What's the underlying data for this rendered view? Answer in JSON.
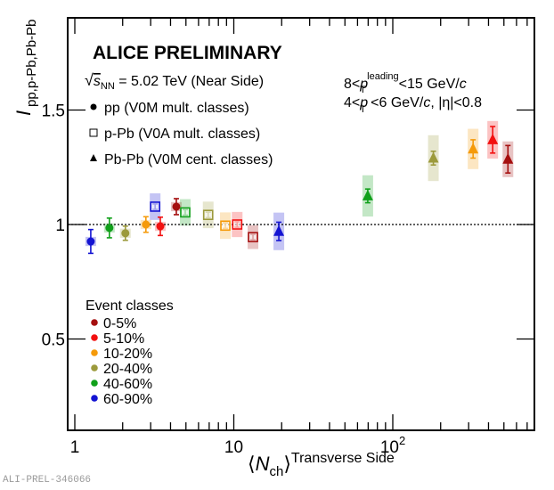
{
  "watermark": "ALI-PREL-346066",
  "chart_data": {
    "type": "scatter",
    "title": "ALICE PRELIMINARY",
    "energy_label": {
      "pre": "√",
      "var": "s",
      "sub": "NN",
      "post": " = 5.02 TeV (Near Side)"
    },
    "kinematics": [
      {
        "pre": "8<",
        "var": "p",
        "sub": "T",
        "sup": "leading",
        "post": "<15 GeV/",
        "unit": "c",
        "tail": ""
      },
      {
        "pre": "4<",
        "var": "p",
        "sub": "T",
        "sup": "",
        "post": "<6 GeV/",
        "unit": "c",
        "tail": ", |η|<0.8"
      }
    ],
    "xlabel": {
      "main": "⟨N",
      "sub": "ch",
      "close": "⟩",
      "sup": "Transverse Side"
    },
    "ylabel": {
      "main": "I",
      "sub": "pp,p-Pb,Pb-Pb"
    },
    "xscale": "log",
    "xlim": [
      0.92,
      750
    ],
    "ylim": [
      0.07,
      1.9
    ],
    "x_ticks": [
      {
        "value": 1,
        "label": "1",
        "sup": ""
      },
      {
        "value": 10,
        "label": "10",
        "sup": ""
      },
      {
        "value": 100,
        "label": "10",
        "sup": "2"
      }
    ],
    "y_ticks": [
      {
        "value": 0.5,
        "label": "0.5"
      },
      {
        "value": 1.0,
        "label": "1"
      },
      {
        "value": 1.5,
        "label": "1.5"
      }
    ],
    "reference_line": 1.0,
    "grid": false,
    "systems_legend": [
      {
        "marker": "circle",
        "label": "pp (V0M mult. classes)"
      },
      {
        "marker": "open-square",
        "label": "p-Pb (V0A mult. classes)"
      },
      {
        "marker": "triangle",
        "label": "Pb-Pb (V0M cent. classes)"
      }
    ],
    "classes_legend_title": "Event classes",
    "classes_legend": [
      {
        "label": "0-5%",
        "color": "#a50f0f"
      },
      {
        "label": "5-10%",
        "color": "#f21010"
      },
      {
        "label": "10-20%",
        "color": "#f59a0a"
      },
      {
        "label": "20-40%",
        "color": "#9c9a3c"
      },
      {
        "label": "40-60%",
        "color": "#10a01a"
      },
      {
        "label": "60-90%",
        "color": "#1414d2"
      }
    ],
    "legend_placement": "top-left",
    "series": [
      {
        "name": "pp (V0M mult. classes)",
        "marker": "circle",
        "points": [
          {
            "cls": "60-90%",
            "x": 1.26,
            "y": 0.926,
            "stat": 0.052,
            "sys": 0.02
          },
          {
            "cls": "40-60%",
            "x": 1.65,
            "y": 0.985,
            "stat": 0.043,
            "sys": 0.02
          },
          {
            "cls": "20-40%",
            "x": 2.08,
            "y": 0.962,
            "stat": 0.031,
            "sys": 0.02
          },
          {
            "cls": "10-20%",
            "x": 2.8,
            "y": 1.0,
            "stat": 0.034,
            "sys": 0.02
          },
          {
            "cls": "5-10%",
            "x": 3.45,
            "y": 0.992,
            "stat": 0.04,
            "sys": 0.02
          },
          {
            "cls": "0-5%",
            "x": 4.35,
            "y": 1.078,
            "stat": 0.035,
            "sys": 0.02
          }
        ]
      },
      {
        "name": "p-Pb (V0A mult. classes)",
        "marker": "open-square",
        "points": [
          {
            "cls": "60-90%",
            "x": 3.2,
            "y": 1.078,
            "stat": 0.012,
            "sys": 0.058
          },
          {
            "cls": "40-60%",
            "x": 4.95,
            "y": 1.053,
            "stat": 0.012,
            "sys": 0.058
          },
          {
            "cls": "20-40%",
            "x": 6.9,
            "y": 1.042,
            "stat": 0.012,
            "sys": 0.058
          },
          {
            "cls": "10-20%",
            "x": 8.85,
            "y": 0.995,
            "stat": 0.012,
            "sys": 0.058
          },
          {
            "cls": "5-10%",
            "x": 10.5,
            "y": 1.0,
            "stat": 0.012,
            "sys": 0.055
          },
          {
            "cls": "0-5%",
            "x": 13.2,
            "y": 0.945,
            "stat": 0.012,
            "sys": 0.052
          }
        ]
      },
      {
        "name": "Pb-Pb (V0M cent. classes)",
        "marker": "triangle",
        "points": [
          {
            "cls": "60-90%",
            "x": 19.2,
            "y": 0.97,
            "stat": 0.04,
            "sys": 0.082
          },
          {
            "cls": "40-60%",
            "x": 69.6,
            "y": 1.125,
            "stat": 0.03,
            "sys": 0.09
          },
          {
            "cls": "20-40%",
            "x": 180,
            "y": 1.29,
            "stat": 0.03,
            "sys": 0.1
          },
          {
            "cls": "10-20%",
            "x": 320,
            "y": 1.33,
            "stat": 0.04,
            "sys": 0.088
          },
          {
            "cls": "5-10%",
            "x": 425,
            "y": 1.37,
            "stat": 0.058,
            "sys": 0.082
          },
          {
            "cls": "0-5%",
            "x": 530,
            "y": 1.285,
            "stat": 0.06,
            "sys": 0.078
          }
        ]
      }
    ]
  }
}
